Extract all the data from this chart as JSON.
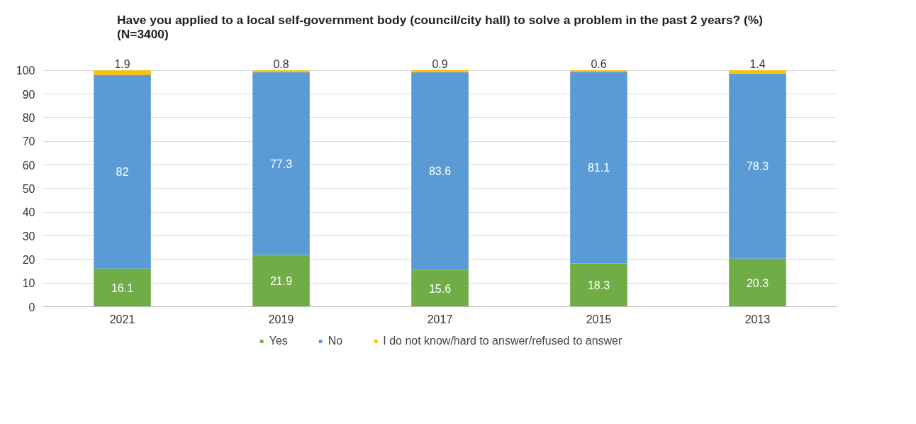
{
  "chart_data": {
    "type": "bar",
    "stacked": true,
    "title": "Have you applied to a local self-government body (council/city hall) to solve a problem in the past 2 years? (%)\n(N=3400)",
    "categories": [
      "2021",
      "2019",
      "2017",
      "2015",
      "2013"
    ],
    "series": [
      {
        "name": "Yes",
        "color": "#70ad47",
        "values": [
          16.1,
          21.9,
          15.6,
          18.3,
          20.3
        ]
      },
      {
        "name": "No",
        "color": "#5b9bd5",
        "values": [
          82,
          77.3,
          83.6,
          81.1,
          78.3
        ]
      },
      {
        "name": "I do not know/hard to answer/refused to answer",
        "color": "#ffc000",
        "values": [
          1.9,
          0.8,
          0.9,
          0.6,
          1.4
        ]
      }
    ],
    "ylim": [
      0,
      100
    ],
    "yticks": [
      0,
      10,
      20,
      30,
      40,
      50,
      60,
      70,
      80,
      90,
      100
    ],
    "grid": "y",
    "legend": "bottom",
    "data_labels": true
  }
}
